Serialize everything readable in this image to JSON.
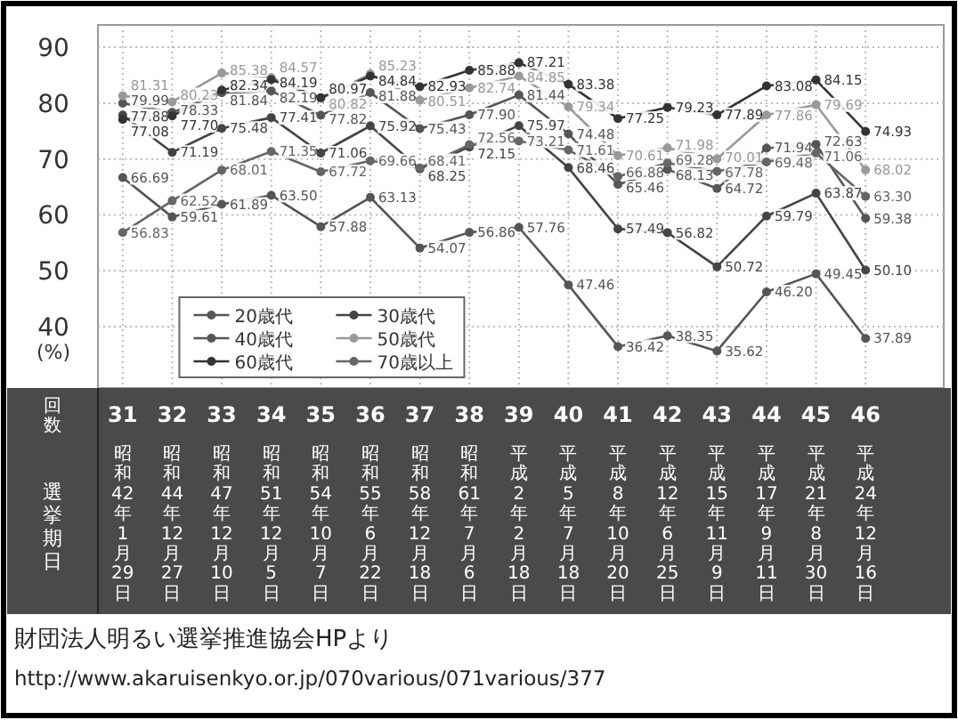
{
  "chart_data": {
    "type": "line",
    "categories": [
      "31\n昭和42年1月29日",
      "32\n昭和44年12月27日",
      "33\n昭和47年12月10日",
      "34\n昭和51年12月5日",
      "35\n昭和54年10月7日",
      "36\n昭和55年6月22日",
      "37\n昭和58年12月18日",
      "38\n昭和61年7月6日",
      "39\n平成2年2月18日",
      "40\n平成5年7月18日",
      "41\n平成8年10月20日",
      "42\n平成12年6月25日",
      "43\n平成15年11月9日",
      "44\n平成17年9月11日",
      "45\n平成21年8月30日",
      "46\n平成24年12月16日"
    ],
    "xlabel": "回数",
    "ylabel": "(%)",
    "series": [
      {
        "name": "20歳代",
        "color": "#555555",
        "values": [
          66.69,
          59.61,
          61.89,
          63.5,
          57.88,
          63.13,
          54.07,
          56.86,
          57.76,
          47.46,
          36.42,
          38.35,
          35.62,
          46.2,
          49.45,
          37.89
        ],
        "value_labels": [
          "66.69",
          "59.61",
          "61.89",
          "63.50",
          "57.88",
          "63.13",
          "54.07",
          "56.86",
          "57.76",
          "47.46",
          "36.42",
          "38.35",
          "35.62",
          "46.20",
          "49.45",
          "37.89"
        ]
      },
      {
        "name": "30歳代",
        "color": "#444444",
        "values": [
          77.88,
          71.19,
          75.48,
          77.41,
          71.06,
          75.92,
          68.25,
          72.15,
          75.97,
          68.46,
          57.49,
          56.82,
          50.72,
          59.79,
          63.87,
          50.1
        ],
        "value_labels": [
          "77.88",
          "71.19",
          "75.48",
          "77.41",
          "71.06",
          "75.92",
          "68.25",
          "72.15",
          "75.97",
          "68.46",
          "57.49",
          "56.82",
          "50.72",
          "59.79",
          "63.87",
          "50.10"
        ]
      },
      {
        "name": "40歳代",
        "color": "#555555",
        "values": [
          79.99,
          78.33,
          81.84,
          82.19,
          77.82,
          81.88,
          75.43,
          77.9,
          81.44,
          74.48,
          65.46,
          68.13,
          64.72,
          71.94,
          72.63,
          59.38
        ],
        "value_labels": [
          "79.99",
          "78.33",
          "81.84",
          "82.19",
          "77.82",
          "81.88",
          "75.43",
          "77.90",
          "81.44",
          "74.48",
          "65.46",
          "68.13",
          "64.72",
          "71.94",
          "72.63",
          "59.38"
        ]
      },
      {
        "name": "50歳代",
        "color": "#999999",
        "values": [
          81.31,
          80.23,
          85.38,
          84.57,
          80.82,
          85.23,
          80.51,
          82.74,
          84.85,
          79.34,
          70.61,
          71.98,
          70.01,
          77.86,
          79.69,
          68.02
        ],
        "value_labels": [
          "81.31",
          "80.23",
          "85.38",
          "84.57",
          "80.82",
          "85.23",
          "80.51",
          "82.74",
          "84.85",
          "79.34",
          "70.61",
          "71.98",
          "70.01",
          "77.86",
          "79.69",
          "68.02"
        ]
      },
      {
        "name": "60歳代",
        "color": "#333333",
        "values": [
          77.08,
          77.7,
          82.34,
          84.19,
          80.97,
          84.84,
          82.93,
          85.88,
          87.21,
          83.38,
          77.25,
          79.23,
          77.89,
          83.08,
          84.15,
          74.93
        ],
        "value_labels": [
          "77.08",
          "77.70",
          "82.34",
          "84.19",
          "80.97",
          "84.84",
          "82.93",
          "85.88",
          "87.21",
          "83.38",
          "77.25",
          "79.23",
          "77.89",
          "83.08",
          "84.15",
          "74.93"
        ]
      },
      {
        "name": "70歳以上",
        "color": "#666666",
        "values": [
          56.83,
          62.52,
          68.01,
          71.35,
          67.72,
          69.66,
          68.41,
          72.56,
          73.21,
          71.61,
          66.88,
          69.28,
          67.78,
          69.48,
          71.06,
          63.3
        ],
        "value_labels": [
          "56.83",
          "62.52",
          "68.01",
          "71.35",
          "67.72",
          "69.66",
          "68.41",
          "72.56",
          "73.21",
          "71.61",
          "66.88",
          "69.28",
          "67.78",
          "69.48",
          "71.06",
          "63.30"
        ]
      }
    ],
    "ylim": [
      29,
      94
    ],
    "yticks": [
      40,
      50,
      60,
      70,
      80,
      90
    ],
    "grid": true,
    "legend": "bottom left",
    "marker": "circle",
    "line_style": "solid",
    "annotations": [
      "選挙期日",
      "財団法人明るい選挙推進協会HPより",
      "http://www.akaruisenkyo.or.jp/070various/071various/377"
    ]
  }
}
